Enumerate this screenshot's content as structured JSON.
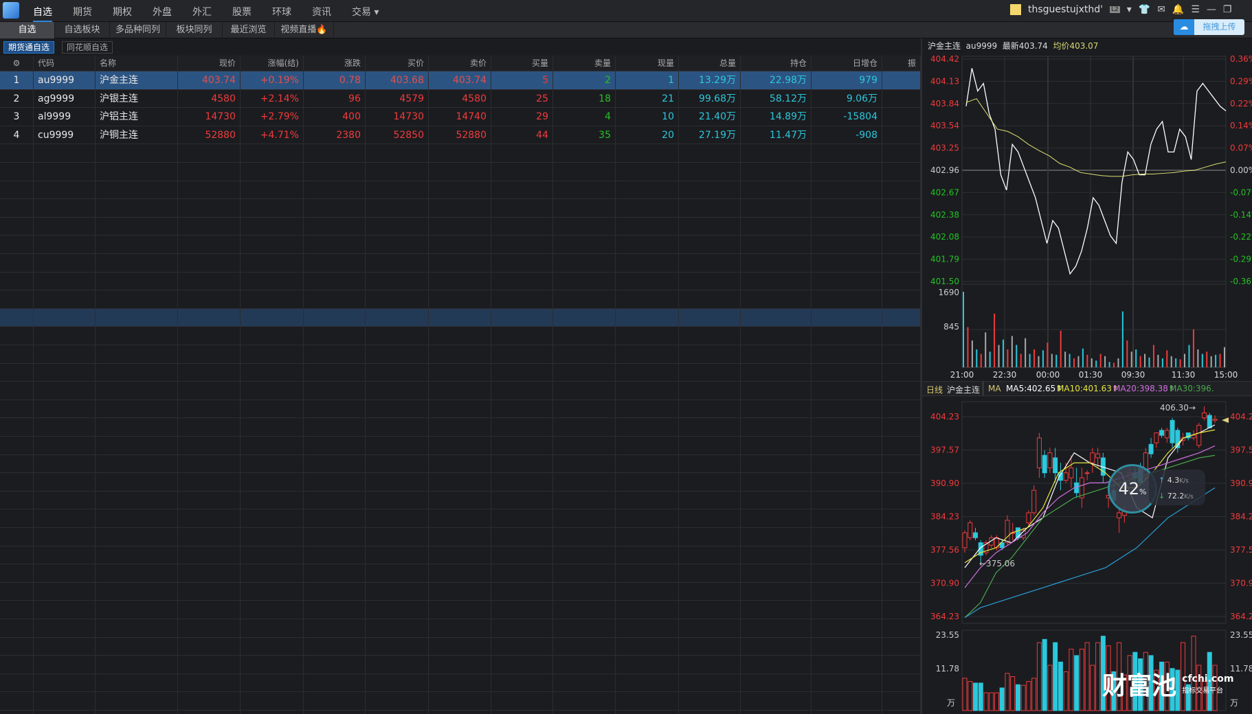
{
  "topnav": {
    "items": [
      "自选",
      "期货",
      "期权",
      "外盘",
      "外汇",
      "股票",
      "环球",
      "资讯",
      "交易 ▾"
    ],
    "active": 0
  },
  "user": {
    "name": "thsguestujxthd'",
    "badge": "L2"
  },
  "subtabs": {
    "items": [
      "自选",
      "自选板块",
      "多品种同列",
      "板块同列",
      "最近浏览",
      "视频直播"
    ],
    "active": 0
  },
  "upload_label": "拖拽上传",
  "filters": {
    "items": [
      "期货通自选",
      "同花顺自选"
    ],
    "active": 0
  },
  "table": {
    "columns": [
      "",
      "代码",
      "名称",
      "现价",
      "涨幅(结)",
      "涨跌",
      "买价",
      "卖价",
      "买量",
      "卖量",
      "现量",
      "总量",
      "持仓",
      "日增仓",
      "振"
    ],
    "rows": [
      [
        "1",
        "au9999",
        "沪金主连",
        "403.74",
        "+0.19%",
        "0.78",
        "403.68",
        "403.74",
        "5",
        "2",
        "1",
        "13.29万",
        "22.98万",
        "979"
      ],
      [
        "2",
        "ag9999",
        "沪银主连",
        "4580",
        "+2.14%",
        "96",
        "4579",
        "4580",
        "25",
        "18",
        "21",
        "99.68万",
        "58.12万",
        "9.06万"
      ],
      [
        "3",
        "al9999",
        "沪铝主连",
        "14730",
        "+2.79%",
        "400",
        "14730",
        "14740",
        "29",
        "4",
        "10",
        "21.40万",
        "14.89万",
        "-15804"
      ],
      [
        "4",
        "cu9999",
        "沪铜主连",
        "52880",
        "+4.71%",
        "2380",
        "52850",
        "52880",
        "44",
        "35",
        "20",
        "27.19万",
        "11.47万",
        "-908"
      ]
    ],
    "selected_row": 0
  },
  "intraday": {
    "name": "沪金主连",
    "code": "au9999",
    "latest": "最新403.74",
    "avg": "均价403.07"
  },
  "daily": {
    "period": "日线",
    "name": "沪金主连",
    "ma_label": "MA",
    "ma5": "MA5:402.65↑",
    "ma10": "MA10:401.63↑",
    "ma20": "MA20:398.38↑",
    "ma30": "MA30:396."
  },
  "speed_widget": {
    "percent": "42",
    "unit": "%",
    "up": "4.3",
    "down": "72.2",
    "rate_unit": "K/s"
  },
  "watermark": {
    "brand": "财富池",
    "site": "cfchi.com",
    "tagline": "指标交易平台"
  },
  "colors": {
    "up": "#f03b3b",
    "down": "#22c422",
    "cyan": "#2cc8dc",
    "avg": "#e0e070"
  },
  "chart_data": [
    {
      "type": "line",
      "title": "沪金主连 au9999",
      "x_ticks": [
        "21:00",
        "22:30",
        "00:00",
        "01:30",
        "09:30",
        "11:30",
        "15:00"
      ],
      "y_ticks": [
        "404.42",
        "404.13",
        "403.84",
        "403.54",
        "403.25",
        "402.96",
        "402.67",
        "402.38",
        "402.08",
        "401.79",
        "401.50"
      ],
      "pct_ticks": [
        "0.36%",
        "0.29%",
        "0.22%",
        "0.14%",
        "0.07%",
        "0.00%",
        "-0.07%",
        "-0.14%",
        "-0.22%",
        "-0.29%",
        "-0.36%"
      ],
      "ylim": [
        401.5,
        404.42
      ],
      "prev_settle": 402.96,
      "series": [
        {
          "name": "price",
          "values": [
            403.8,
            404.3,
            404.0,
            404.1,
            403.7,
            403.5,
            402.9,
            402.7,
            403.3,
            403.2,
            403.0,
            402.8,
            402.6,
            402.3,
            402.0,
            402.3,
            402.2,
            401.9,
            401.6,
            401.7,
            401.9,
            402.2,
            402.6,
            402.5,
            402.3,
            402.1,
            402.0,
            402.8,
            403.2,
            403.1,
            402.9,
            402.9,
            403.3,
            403.5,
            403.6,
            403.2,
            403.2,
            403.5,
            403.4,
            403.1,
            404.0,
            404.1,
            404.0,
            403.9,
            403.8,
            403.74
          ]
        },
        {
          "name": "avg",
          "values": [
            403.85,
            403.9,
            403.7,
            403.5,
            403.47,
            403.4,
            403.3,
            403.22,
            403.15,
            403.05,
            403.0,
            402.93,
            402.91,
            402.89,
            402.88,
            402.88,
            402.9,
            402.91,
            402.91,
            402.92,
            402.93,
            402.95,
            402.96,
            403.0,
            403.04,
            403.07
          ]
        }
      ],
      "volume": {
        "y_ticks": [
          "1690",
          "845"
        ],
        "ymax": 1690,
        "values": [
          1690,
          900,
          600,
          400,
          300,
          780,
          350,
          1200,
          500,
          620,
          400,
          700,
          500,
          300,
          650,
          300,
          400,
          250,
          380,
          550,
          300,
          280,
          820,
          350,
          300,
          200,
          250,
          420,
          280,
          200,
          150,
          300,
          250,
          120,
          100,
          200,
          1250,
          600,
          350,
          400,
          250,
          300,
          220,
          500,
          280,
          200,
          380,
          250,
          200,
          180,
          300,
          500,
          850,
          400,
          300,
          350,
          250,
          280,
          300,
          450
        ]
      }
    },
    {
      "type": "candlestick",
      "title": "日线 沪金主连",
      "y_ticks": [
        "404.23",
        "397.57",
        "390.90",
        "384.23",
        "377.56",
        "370.90",
        "364.23"
      ],
      "ylim": [
        362,
        407
      ],
      "annotations": [
        "406.30→",
        "←375.06"
      ],
      "ohlc": [
        [
          378,
          381.5,
          377,
          381
        ],
        [
          380,
          383.5,
          379.5,
          383
        ],
        [
          381,
          382,
          379.5,
          380
        ],
        [
          379,
          379.5,
          375.06,
          376.5
        ],
        [
          377,
          379.5,
          376.5,
          379
        ],
        [
          378.5,
          380.5,
          378,
          380
        ],
        [
          378,
          380.5,
          377.5,
          380
        ],
        [
          379,
          379.5,
          377.5,
          378
        ],
        [
          379,
          384.5,
          378.5,
          383.5
        ],
        [
          381,
          383,
          379.5,
          381
        ],
        [
          382,
          382,
          379.5,
          380
        ],
        [
          380,
          382,
          379.5,
          381.5
        ],
        [
          383,
          385.5,
          382.5,
          385
        ],
        [
          385,
          390.5,
          384.5,
          389.5
        ],
        [
          394,
          401,
          392,
          400
        ],
        [
          396.5,
          397.5,
          392,
          393
        ],
        [
          394,
          398,
          393,
          397
        ],
        [
          396,
          398,
          391,
          393
        ],
        [
          393,
          395,
          389.5,
          391.5
        ],
        [
          391.5,
          395,
          391,
          393
        ],
        [
          392,
          396.5,
          390,
          394
        ],
        [
          391,
          394,
          388,
          389
        ],
        [
          388,
          394,
          386,
          392
        ],
        [
          393,
          393.5,
          391.5,
          393
        ],
        [
          395,
          398,
          393,
          397
        ],
        [
          396,
          398,
          394,
          396.8
        ],
        [
          396,
          397,
          391,
          392.5
        ],
        [
          388,
          389.5,
          386,
          388.5
        ],
        [
          389.5,
          391,
          387,
          387.5
        ],
        [
          384,
          386,
          381,
          385
        ],
        [
          384.5,
          386.5,
          383,
          385.5
        ],
        [
          392,
          394,
          391,
          393
        ],
        [
          393,
          394,
          391,
          392
        ],
        [
          394,
          395,
          391,
          391
        ],
        [
          392,
          398,
          391.5,
          397
        ],
        [
          398.7,
          400,
          396,
          396.8
        ],
        [
          399,
          401,
          398,
          401
        ],
        [
          401.5,
          402,
          400,
          400.5
        ],
        [
          400,
          402,
          399,
          401.5
        ],
        [
          403.5,
          404,
          398,
          399
        ],
        [
          401.5,
          402,
          397,
          398
        ],
        [
          399.5,
          401,
          398.5,
          400
        ],
        [
          401,
          401,
          399.5,
          400
        ],
        [
          400,
          401.5,
          399.5,
          400.5
        ],
        [
          398.5,
          403,
          398,
          402.5
        ],
        [
          404,
          406.3,
          403.5,
          405
        ],
        [
          404.5,
          405,
          402,
          402
        ],
        [
          403.5,
          404.5,
          403,
          403.74
        ]
      ],
      "ma": [
        {
          "name": "MA5",
          "color": "#ffffff",
          "values": [
            374,
            378,
            380,
            379,
            382,
            384,
            392,
            397,
            395,
            394,
            393,
            386,
            384,
            396,
            400,
            401,
            402.6
          ]
        },
        {
          "name": "MA10",
          "color": "#e6e63c",
          "values": [
            375,
            377,
            378,
            381,
            382,
            386,
            393,
            395,
            395,
            393,
            390,
            390,
            393,
            397,
            400,
            401,
            401.6
          ]
        },
        {
          "name": "MA20",
          "color": "#d070e0",
          "values": [
            370,
            374,
            377,
            379,
            381,
            385,
            388,
            390,
            391,
            391,
            392,
            393,
            394,
            395,
            396,
            397,
            398.4
          ]
        },
        {
          "name": "MA30",
          "color": "#4aa84a",
          "values": [
            364,
            367,
            373,
            376,
            380,
            384,
            386,
            388,
            389,
            390,
            391,
            392,
            393,
            394,
            395,
            396,
            396.5
          ]
        },
        {
          "name": "MA60",
          "color": "#2aa0d8",
          "values": [
            364,
            366,
            367,
            368,
            369,
            370,
            371,
            372,
            373,
            374,
            376,
            378,
            381,
            384,
            386,
            388,
            390
          ]
        }
      ],
      "volume": {
        "y_ticks": [
          "23.55",
          "11.78"
        ],
        "unit": "万",
        "ymax": 23.55,
        "values": [
          10,
          9,
          8.5,
          8.5,
          5.5,
          5.5,
          5.5,
          7,
          11.5,
          10.5,
          8,
          7.8,
          9,
          10,
          21,
          22,
          14,
          21,
          15,
          12,
          19,
          17,
          19,
          21,
          14,
          21,
          23,
          20,
          12,
          21,
          11,
          17,
          18,
          16,
          18,
          17,
          12.5,
          15,
          15,
          13,
          12.5,
          21,
          8,
          23,
          14,
          9,
          18,
          14
        ]
      }
    }
  ]
}
